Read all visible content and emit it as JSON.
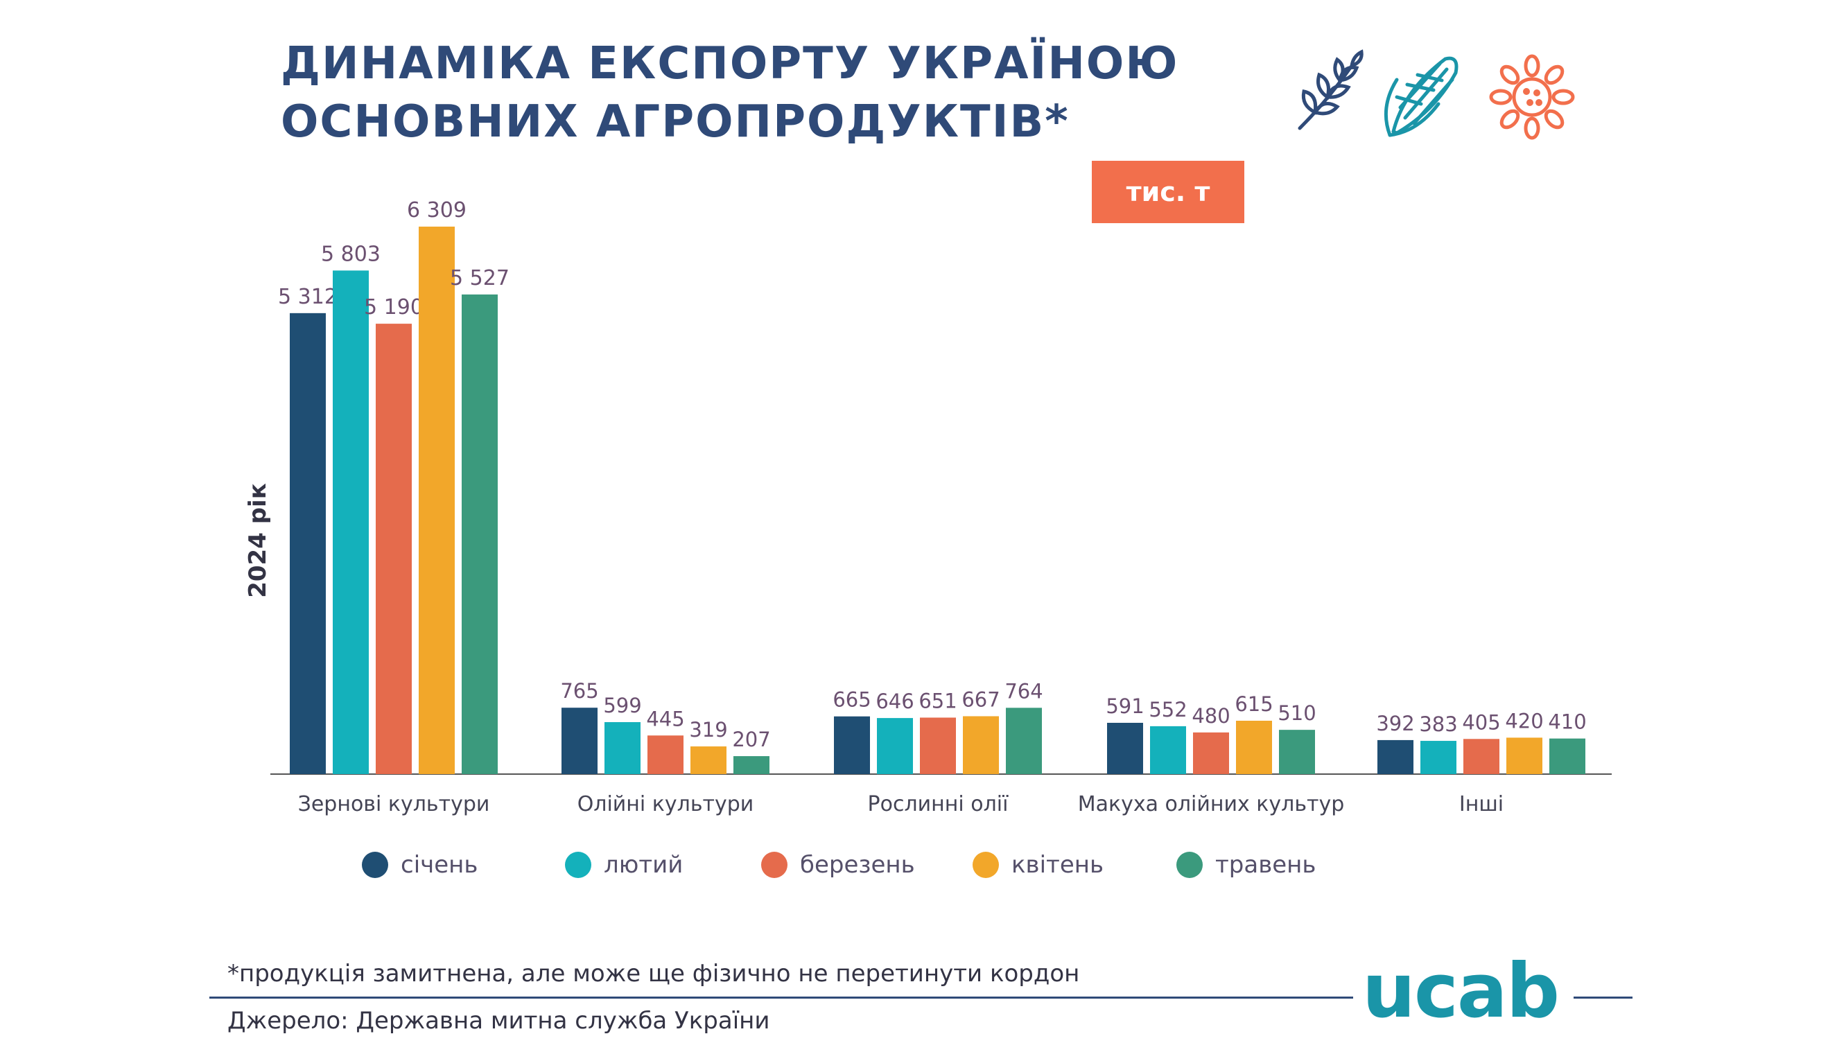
{
  "title_lines": [
    "ДИНАМІКА ЕКСПОРТУ УКРАЇНОЮ",
    "ОСНОВНИХ АГРОПРОДУКТІВ*"
  ],
  "unit_badge": "тис. т",
  "icons": [
    "wheat-icon",
    "corn-icon",
    "sunflower-icon"
  ],
  "footnote": "*продукція замитнена, але може ще фізично не перетинути кордон",
  "source": "Джерело: Державна митна служба України",
  "logo": "ucab",
  "colors": {
    "title": "#2f4a78",
    "axis": "#555555",
    "value_label": "#6b5070",
    "badge": "#f26f4c",
    "logo": "#1a95a8"
  },
  "chart_data": {
    "type": "bar",
    "ylabel": "2024 рік",
    "categories": [
      "Зернові культури",
      "Олійні культури",
      "Рослинні олії",
      "Макуха олійних культур",
      "Інші"
    ],
    "series": [
      {
        "name": "січень",
        "color": "#1f4e73",
        "values": [
          5312,
          765,
          665,
          591,
          392
        ],
        "labels": [
          "5 312",
          "765",
          "665",
          "591",
          "392"
        ]
      },
      {
        "name": "лютий",
        "color": "#14b1bb",
        "values": [
          5803,
          599,
          646,
          552,
          383
        ],
        "labels": [
          "5 803",
          "599",
          "646",
          "552",
          "383"
        ]
      },
      {
        "name": "березень",
        "color": "#e56b4c",
        "values": [
          5190,
          445,
          651,
          480,
          405
        ],
        "labels": [
          "5 190",
          "445",
          "651",
          "480",
          "405"
        ]
      },
      {
        "name": "квітень",
        "color": "#f2a72a",
        "values": [
          6309,
          319,
          667,
          615,
          420
        ],
        "labels": [
          "6 309",
          "319",
          "667",
          "615",
          "420"
        ]
      },
      {
        "name": "травень",
        "color": "#3b9a7d",
        "values": [
          5527,
          207,
          764,
          510,
          410
        ],
        "labels": [
          "5 527",
          "207",
          "764",
          "510",
          "410"
        ]
      }
    ],
    "legend_position": "bottom",
    "grid": false
  }
}
